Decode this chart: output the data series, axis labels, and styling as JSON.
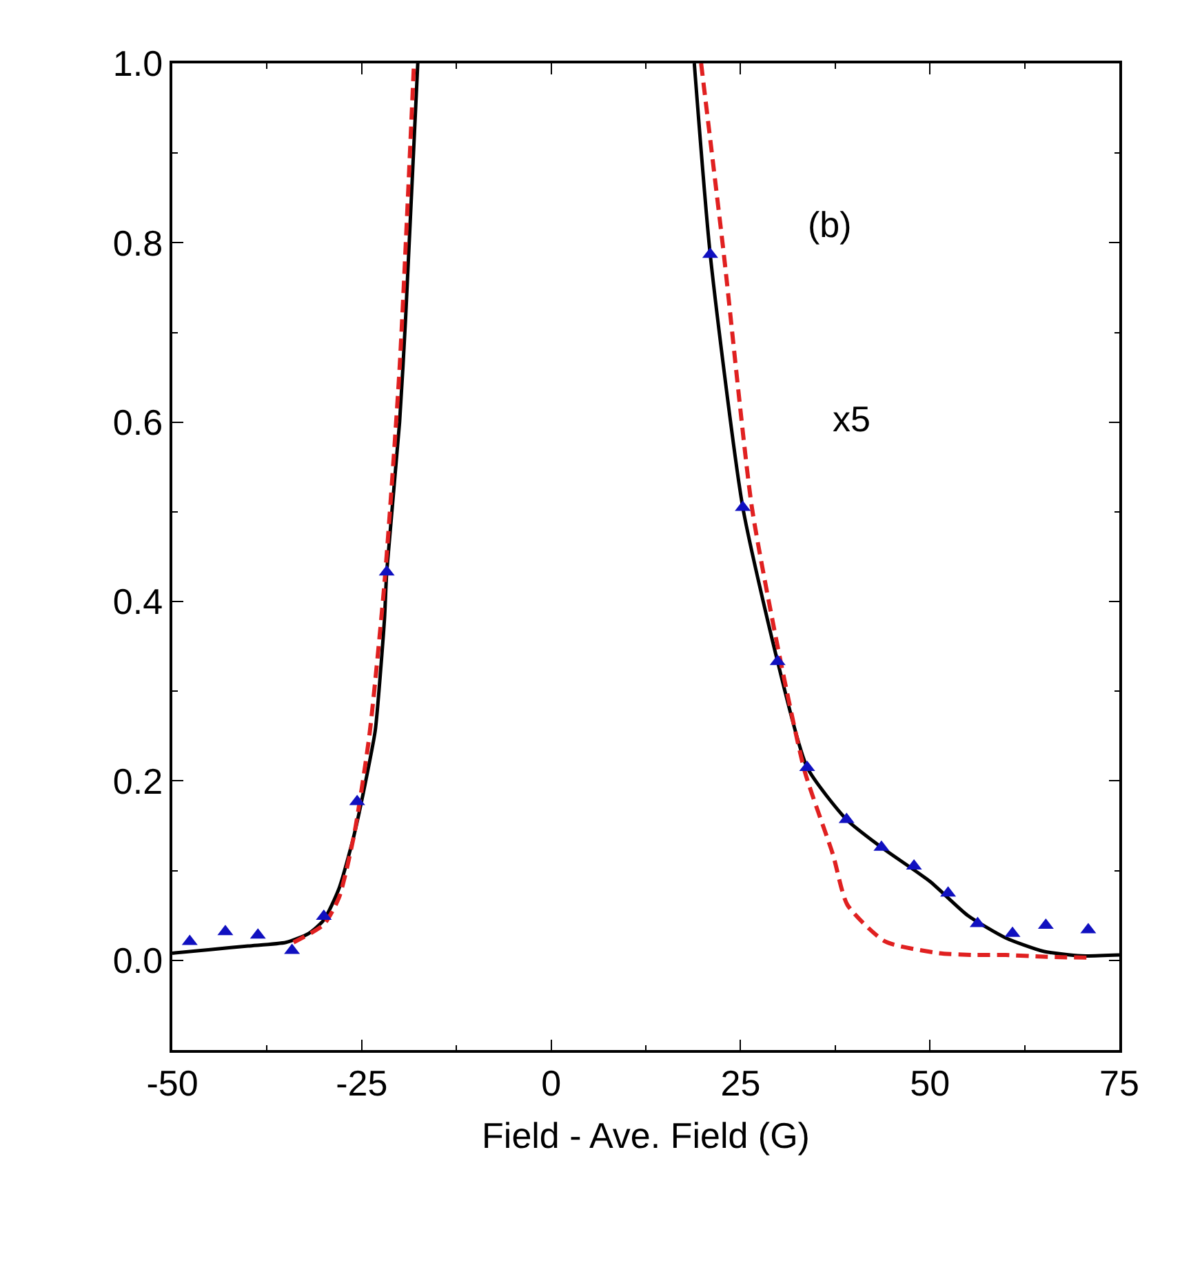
{
  "chart_data": {
    "type": "line",
    "xlabel": "Field - Ave. Field (G)",
    "annotations": [
      "(b)",
      "x5"
    ],
    "xlim": [
      -50,
      75
    ],
    "xticks": [
      -50,
      -25,
      0,
      25,
      50,
      75
    ],
    "ylim": [
      -0.1,
      1.0
    ],
    "yticks": [
      {
        "value": 0,
        "label": "0.0"
      },
      0.2,
      0.4,
      0.6,
      0.8,
      {
        "value": 1,
        "label": "1.0"
      }
    ],
    "series": [
      {
        "color": "#000000",
        "line_style": "solid",
        "marker": "none",
        "x": [
          -50,
          -45,
          -40,
          -35,
          -32,
          -30,
          -28,
          -26,
          -24,
          -23.2,
          -22,
          -21.7,
          -20,
          -19.2,
          -17.6,
          null,
          18.9,
          21.0,
          25.3,
          29.9,
          33.8,
          39.0,
          43.6,
          50,
          55,
          60,
          65,
          70,
          75
        ],
        "values": [
          0.008,
          0.012,
          0.016,
          0.02,
          0.03,
          0.045,
          0.08,
          0.14,
          0.22,
          0.257,
          0.38,
          0.433,
          0.6,
          0.717,
          1.0,
          null,
          1.0,
          0.787,
          0.505,
          0.333,
          0.215,
          0.157,
          0.126,
          0.088,
          0.05,
          0.025,
          0.01,
          0.005,
          0.006
        ]
      },
      {
        "color": "#e02020",
        "line_style": "dashed",
        "marker": "none",
        "x": [
          -34,
          -30,
          -28,
          -26,
          -24,
          -22,
          -20,
          -18.1,
          null,
          19.8,
          22.8,
          26.5,
          30.3,
          33.5,
          37.2,
          39.1,
          44.1,
          51.2,
          55.6,
          60,
          65,
          70.9
        ],
        "values": [
          0.02,
          0.04,
          0.07,
          0.14,
          0.25,
          0.42,
          0.66,
          1.0,
          null,
          1.0,
          0.787,
          0.505,
          0.333,
          0.21,
          0.118,
          0.062,
          0.021,
          0.008,
          0.006,
          0.006,
          0.004,
          0.003
        ]
      },
      {
        "type": "scatter",
        "color": "#1010c0",
        "marker": "triangle",
        "x": [
          -47.7,
          -43.0,
          -38.7,
          -34.2,
          -30.0,
          -25.6,
          -21.7,
          21.0,
          25.3,
          29.9,
          33.8,
          39.0,
          43.6,
          47.9,
          52.4,
          56.3,
          60.9,
          65.3,
          70.9
        ],
        "values": [
          0.021,
          0.032,
          0.028,
          0.011,
          0.049,
          0.177,
          0.433,
          0.787,
          0.505,
          0.333,
          0.215,
          0.157,
          0.126,
          0.105,
          0.075,
          0.041,
          0.03,
          0.039,
          0.034
        ]
      }
    ]
  }
}
